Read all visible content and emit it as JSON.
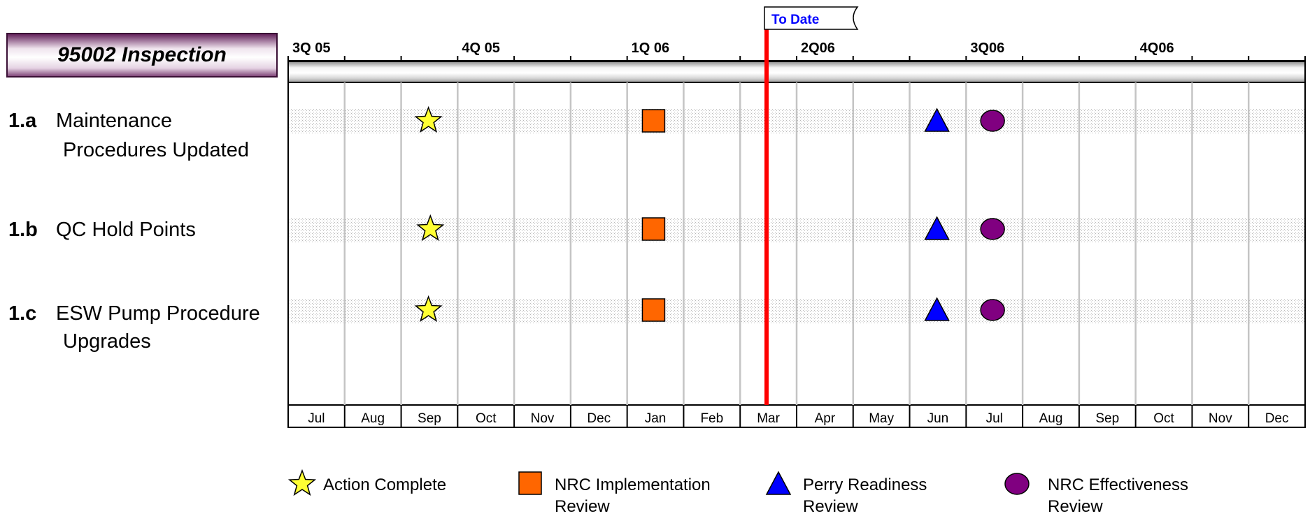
{
  "chart_data": {
    "type": "scatter",
    "title": "95002 Inspection",
    "quarters": [
      "3Q 05",
      "4Q 05",
      "1Q 06",
      "2Q06",
      "3Q06",
      "4Q06"
    ],
    "months": [
      "Jul",
      "Aug",
      "Sep",
      "Oct",
      "Nov",
      "Dec",
      "Jan",
      "Feb",
      "Mar",
      "Apr",
      "May",
      "Jun",
      "Jul",
      "Aug",
      "Sep",
      "Oct",
      "Nov",
      "Dec"
    ],
    "x_range": [
      "2005-07-01",
      "2006-12-31"
    ],
    "to_date": {
      "label": "To Date",
      "date": "2006-03-15"
    },
    "rows": [
      {
        "id": "1.a",
        "label_lines": [
          "Maintenance",
          "Procedures Updated"
        ]
      },
      {
        "id": "1.b",
        "label_lines": [
          "QC Hold Points"
        ]
      },
      {
        "id": "1.c",
        "label_lines": [
          "ESW Pump Procedure",
          "Upgrades"
        ]
      }
    ],
    "marker_types": {
      "action_complete": {
        "shape": "star",
        "color": "#FFFF33",
        "legend_lines": [
          "Action Complete"
        ]
      },
      "nrc_implementation_review": {
        "shape": "square",
        "color": "#FF6600",
        "legend_lines": [
          "NRC Implementation",
          "Review"
        ]
      },
      "perry_readiness_review": {
        "shape": "triangle",
        "color": "#0000FF",
        "legend_lines": [
          "Perry Readiness",
          "Review"
        ]
      },
      "nrc_effectiveness_review": {
        "shape": "circle",
        "color": "#800080",
        "legend_lines": [
          "NRC Effectiveness",
          "Review"
        ]
      }
    },
    "series": [
      {
        "marker": "action_complete",
        "points": [
          {
            "row": "1.a",
            "date": "2005-09-15"
          },
          {
            "row": "1.b",
            "date": "2005-09-16"
          },
          {
            "row": "1.c",
            "date": "2005-09-15"
          }
        ]
      },
      {
        "marker": "nrc_implementation_review",
        "points": [
          {
            "row": "1.a",
            "date": "2006-01-15"
          },
          {
            "row": "1.b",
            "date": "2006-01-15"
          },
          {
            "row": "1.c",
            "date": "2006-01-15"
          }
        ]
      },
      {
        "marker": "perry_readiness_review",
        "points": [
          {
            "row": "1.a",
            "date": "2006-06-15"
          },
          {
            "row": "1.b",
            "date": "2006-06-15"
          },
          {
            "row": "1.c",
            "date": "2006-06-15"
          }
        ]
      },
      {
        "marker": "nrc_effectiveness_review",
        "points": [
          {
            "row": "1.a",
            "date": "2006-07-15"
          },
          {
            "row": "1.b",
            "date": "2006-07-15"
          },
          {
            "row": "1.c",
            "date": "2006-07-15"
          }
        ]
      }
    ],
    "legend_position": "bottom",
    "grid": true
  }
}
